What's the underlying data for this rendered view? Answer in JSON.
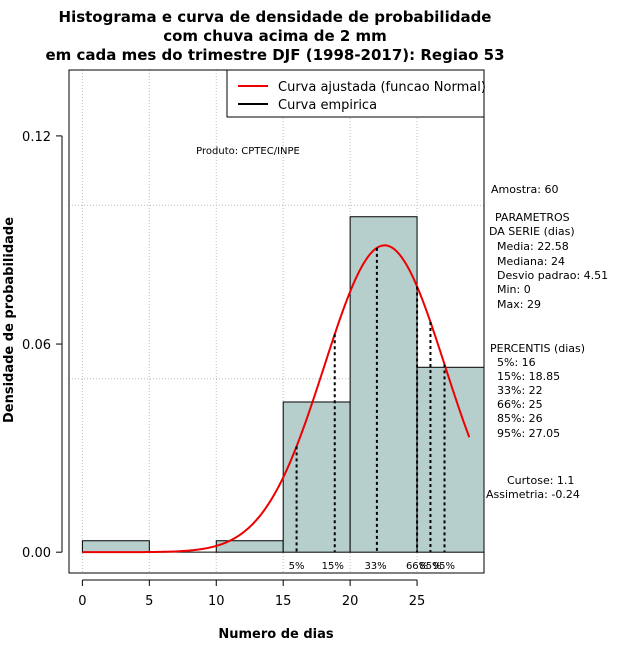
{
  "chart_data": {
    "type": "bar",
    "title_lines": [
      "Histograma e curva de densidade de probabilidade",
      "com chuva acima de 2 mm",
      "em cada mes do trimestre DJF (1998-2017): Regiao 53"
    ],
    "xlabel": "Numero de dias",
    "ylabel": "Densidade de probabilidade",
    "xlim": [
      -1,
      30
    ],
    "ylim": [
      -0.006,
      0.139
    ],
    "x_ticks": [
      0,
      5,
      10,
      15,
      20,
      25
    ],
    "x_tick_labels": [
      "0",
      "5",
      "10",
      "15",
      "20",
      "25"
    ],
    "y_ticks": [
      0.0,
      0.06,
      0.12
    ],
    "y_tick_labels": [
      "0.00",
      "0.06",
      "0.12"
    ],
    "grid_y": [
      0.1,
      0.05
    ],
    "grid_x": [
      0,
      5,
      10,
      15,
      20,
      25
    ],
    "bins": [
      {
        "start": 0,
        "end": 5,
        "density": 0.0033
      },
      {
        "start": 5,
        "end": 10,
        "density": 0.0
      },
      {
        "start": 10,
        "end": 15,
        "density": 0.0033
      },
      {
        "start": 15,
        "end": 20,
        "density": 0.0433
      },
      {
        "start": 20,
        "end": 25,
        "density": 0.0967
      },
      {
        "start": 25,
        "end": 30,
        "density": 0.0533
      }
    ],
    "bar_color": "#b7cfcc",
    "normal_curve": {
      "mean": 22.58,
      "sd": 4.51,
      "x_range": [
        0,
        28.9
      ],
      "color": "#ee0000"
    },
    "percentile_lines": [
      {
        "label": "5%",
        "x": 16,
        "text_x": 16.0
      },
      {
        "label": "15%",
        "x": 18.85,
        "text_x": 18.7
      },
      {
        "label": "33%",
        "x": 22,
        "text_x": 21.9
      },
      {
        "label": "66%",
        "x": 25,
        "text_x": 25.0
      },
      {
        "label": "85%",
        "x": 26,
        "text_x": 26.0
      },
      {
        "label": "95%",
        "x": 27.05,
        "text_x": 27.0
      }
    ],
    "legend": [
      {
        "label": "Curva ajustada (funcao Normal)",
        "color": "#ee0000"
      },
      {
        "label": "Curva empirica",
        "color": "#000000"
      }
    ],
    "product_label": "Produto: CPTEC/INPE",
    "stats_lines": [
      "Amostra: 60",
      " PARAMETROS",
      "DA SERIE (dias)",
      "Media: 22.58",
      "Mediana: 24",
      "Desvio padrao: 4.51",
      "Min: 0",
      "Max: 29",
      "PERCENTIS (dias)",
      "5%: 16",
      "15%: 18.85",
      "33%: 22",
      "66%: 25",
      "85%: 26",
      "95%: 27.05",
      "Curtose: 1.1",
      "Assimetria: -0.24"
    ]
  }
}
